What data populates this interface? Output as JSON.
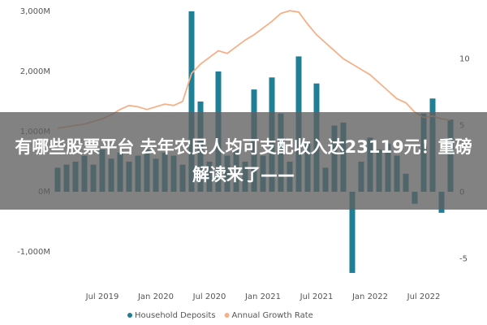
{
  "chart_data": {
    "type": "bar_line",
    "categories": [
      null,
      null,
      null,
      null,
      null,
      "Jul 2019",
      null,
      null,
      null,
      null,
      null,
      "Jan 2020",
      null,
      null,
      null,
      null,
      null,
      "Jul 2020",
      null,
      null,
      null,
      null,
      null,
      "Jan 2021",
      null,
      null,
      null,
      null,
      null,
      "Jul 2021",
      null,
      null,
      null,
      null,
      null,
      "Jan 2022",
      null,
      null,
      null,
      null,
      null,
      "Jul 2022",
      null,
      null,
      null
    ],
    "series": [
      {
        "name": "Household Deposits",
        "type": "bar",
        "color": "#1f7f95",
        "values": [
          400,
          450,
          500,
          600,
          450,
          700,
          550,
          650,
          500,
          600,
          700,
          550,
          650,
          600,
          450,
          3000,
          1500,
          500,
          2000,
          600,
          700,
          500,
          1700,
          600,
          1900,
          1300,
          500,
          2250,
          800,
          1800,
          400,
          1100,
          1150,
          -1350,
          500,
          900,
          700,
          800,
          600,
          300,
          -200,
          1300,
          1550,
          -350,
          1200
        ]
      },
      {
        "name": "Annual Growth Rate",
        "type": "line",
        "axis": "y2",
        "color": "#f5b088",
        "values": [
          4.8,
          4.9,
          5.0,
          5.1,
          5.3,
          5.5,
          5.8,
          6.2,
          6.5,
          6.4,
          6.2,
          6.4,
          6.6,
          6.5,
          6.8,
          8.9,
          9.6,
          10.1,
          10.6,
          10.4,
          10.9,
          11.4,
          11.8,
          12.3,
          12.8,
          13.4,
          13.6,
          13.5,
          12.6,
          11.8,
          11.2,
          10.6,
          10.0,
          9.6,
          9.2,
          8.8,
          8.2,
          7.6,
          7.0,
          6.7,
          6.0,
          5.6,
          5.7,
          5.5,
          5.4
        ]
      }
    ],
    "ylim": [
      -1405,
      3120
    ],
    "yticks": [
      {
        "value": -1000,
        "label": "-1,000M"
      },
      {
        "value": 0,
        "label": "0M"
      },
      {
        "value": 1000,
        "label": "1,000M"
      },
      {
        "value": 2000,
        "label": "2,000M"
      },
      {
        "value": 3000,
        "label": "3,000M"
      }
    ],
    "y2lim": [
      -6.3,
      14.1
    ],
    "y2ticks": [
      -5,
      0,
      5,
      10
    ],
    "grid": false,
    "legend": "bottom"
  },
  "overlay": {
    "headline": "有哪些股票平台 去年农民人均可支配收入达23119元！重磅解读来了——"
  }
}
